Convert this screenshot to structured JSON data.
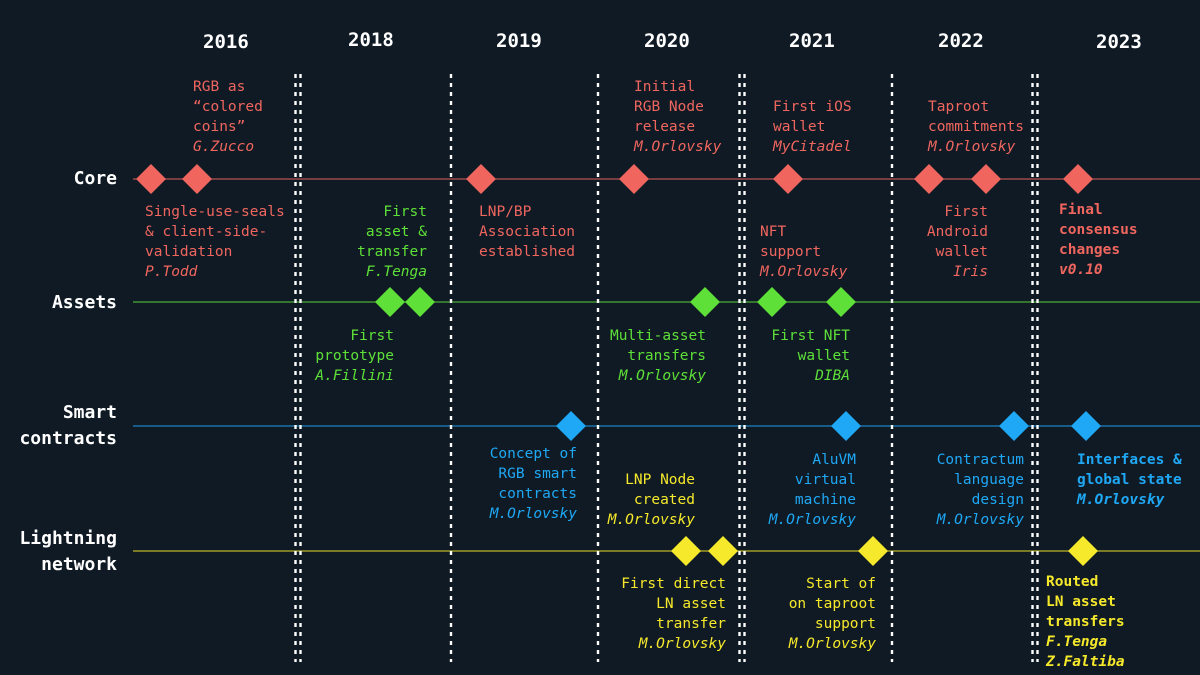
{
  "colors": {
    "background": "#0f1a24",
    "core": "#f0665f",
    "assets": "#5ee038",
    "smart": "#1fa8f5",
    "lightning": "#f6e92b",
    "divider": "#ffffff"
  },
  "years": [
    "2016",
    "2018",
    "2019",
    "2020",
    "2021",
    "2022",
    "2023"
  ],
  "tracks": {
    "core": {
      "label_lines": [
        "Core"
      ]
    },
    "assets": {
      "label_lines": [
        "Assets"
      ]
    },
    "smart": {
      "label_lines": [
        "Smart",
        "contracts"
      ]
    },
    "lightning": {
      "label_lines": [
        "Lightning",
        "network"
      ]
    }
  },
  "events": [
    {
      "id": "core-rgb-colored-coins",
      "track": "core",
      "lines": [
        "RGB as",
        "“colored",
        "coins”"
      ],
      "author": "G.Zucco"
    },
    {
      "id": "core-single-use-seals",
      "track": "core",
      "lines": [
        "Single-use-seals",
        "& client-side-",
        "validation"
      ],
      "author": "P.Todd"
    },
    {
      "id": "core-lnp-bp-association",
      "track": "core",
      "lines": [
        "LNP/BP",
        "Association",
        "established"
      ],
      "author": ""
    },
    {
      "id": "core-initial-rgb-node",
      "track": "core",
      "lines": [
        "Initial",
        "RGB Node",
        "release"
      ],
      "author": "M.Orlovsky"
    },
    {
      "id": "core-first-ios-wallet",
      "track": "core",
      "lines": [
        "First iOS",
        "wallet"
      ],
      "author": "MyCitadel"
    },
    {
      "id": "core-nft-support",
      "track": "core",
      "lines": [
        "NFT",
        "support"
      ],
      "author": "M.Orlovsky"
    },
    {
      "id": "core-taproot-commitments",
      "track": "core",
      "lines": [
        "Taproot",
        "commitments"
      ],
      "author": "M.Orlovsky"
    },
    {
      "id": "core-first-android-wallet",
      "track": "core",
      "lines": [
        "First",
        "Android",
        "wallet"
      ],
      "author": "Iris"
    },
    {
      "id": "core-final-consensus",
      "track": "core",
      "lines": [
        "Final",
        "consensus",
        "changes"
      ],
      "author": "v0.10"
    },
    {
      "id": "assets-first-asset-transfer",
      "track": "assets",
      "lines": [
        "First",
        "asset &",
        "transfer"
      ],
      "author": "F.Tenga"
    },
    {
      "id": "assets-first-prototype",
      "track": "assets",
      "lines": [
        "First",
        "prototype"
      ],
      "author": "A.Fillini"
    },
    {
      "id": "assets-multi-asset-transfers",
      "track": "assets",
      "lines": [
        "Multi-asset",
        "transfers"
      ],
      "author": "M.Orlovsky"
    },
    {
      "id": "assets-first-nft-wallet",
      "track": "assets",
      "lines": [
        "First NFT",
        "wallet"
      ],
      "author": "DIBA"
    },
    {
      "id": "smart-rgb-smart-contracts",
      "track": "smart",
      "lines": [
        "Concept of",
        "RGB smart",
        "contracts"
      ],
      "author": "M.Orlovsky"
    },
    {
      "id": "smart-aluvm",
      "track": "smart",
      "lines": [
        "AluVM",
        "virtual",
        "machine"
      ],
      "author": "M.Orlovsky"
    },
    {
      "id": "smart-contractum",
      "track": "smart",
      "lines": [
        "Contractum",
        "language",
        "design"
      ],
      "author": "M.Orlovsky"
    },
    {
      "id": "smart-interfaces-global-state",
      "track": "smart",
      "lines": [
        "Interfaces &",
        "global state"
      ],
      "author": "M.Orlovsky"
    },
    {
      "id": "ln-lnp-node-created",
      "track": "lightning",
      "lines": [
        "LNP Node",
        "created"
      ],
      "author": "M.Orlovsky"
    },
    {
      "id": "ln-first-direct-asset-transfer",
      "track": "lightning",
      "lines": [
        "First direct",
        "LN asset",
        "transfer"
      ],
      "author": "M.Orlovsky"
    },
    {
      "id": "ln-taproot-support",
      "track": "lightning",
      "lines": [
        "Start of",
        "on taproot",
        "support"
      ],
      "author": "M.Orlovsky"
    },
    {
      "id": "ln-routed-asset-transfers",
      "track": "lightning",
      "lines": [
        "Routed",
        "LN asset",
        "transfers",
        "F.Tenga"
      ],
      "author": "Z.Faltiba"
    }
  ]
}
